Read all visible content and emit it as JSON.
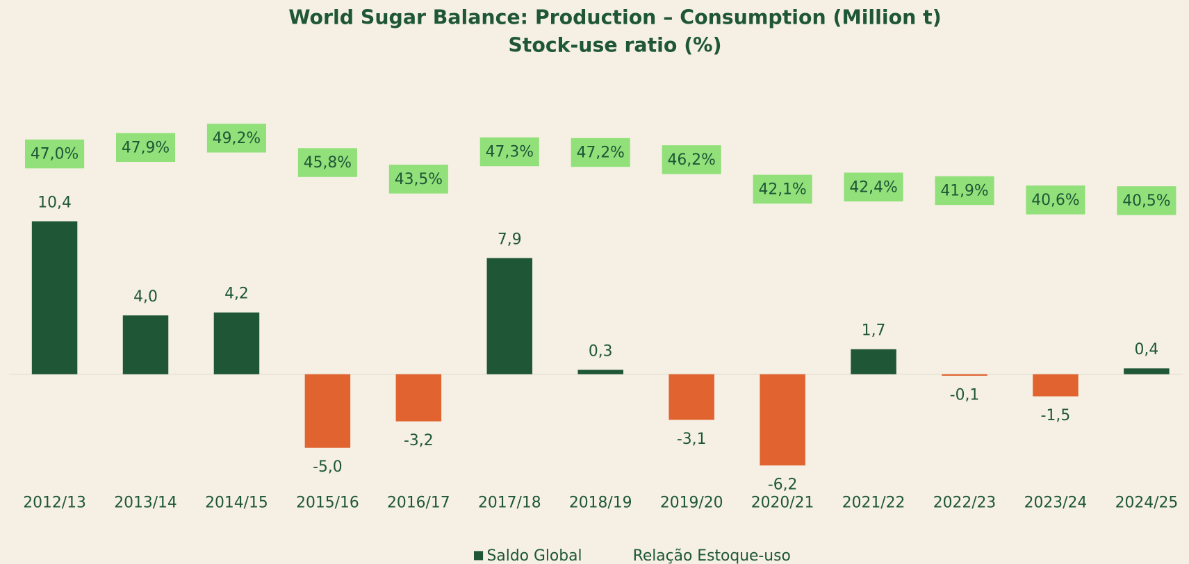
{
  "chart_data": {
    "type": "bar",
    "title": "World Sugar Balance: Production – Consumption (Million t)",
    "subtitle": "Stock-use ratio (%)",
    "categories": [
      "2012/13",
      "2013/14",
      "2014/15",
      "2015/16",
      "2016/17",
      "2017/18",
      "2018/19",
      "2019/20",
      "2020/21",
      "2021/22",
      "2022/23",
      "2023/24",
      "2024/25"
    ],
    "series": [
      {
        "name": "Saldo Global",
        "color": "#1e5636",
        "negative_color": "#e06330",
        "values": [
          10.4,
          4.0,
          4.2,
          -5.0,
          -3.2,
          7.9,
          0.3,
          -3.1,
          -6.2,
          1.7,
          -0.1,
          -1.5,
          0.4
        ],
        "value_labels": [
          "10,4",
          "4,0",
          "4,2",
          "-5,0",
          "-3,2",
          "7,9",
          "0,3",
          "-3,1",
          "-6,2",
          "1,7",
          "-0,1",
          "-1,5",
          "0,4"
        ]
      },
      {
        "name": "Relação Estoque-uso",
        "color": "#92e07a",
        "axis": "y2",
        "values": [
          47.0,
          47.9,
          49.2,
          45.8,
          43.5,
          47.3,
          47.2,
          46.2,
          42.1,
          42.4,
          41.9,
          40.6,
          40.5
        ],
        "value_labels": [
          "47,0%",
          "47,9%",
          "49,2%",
          "45,8%",
          "43,5%",
          "47,3%",
          "47,2%",
          "46,2%",
          "42,1%",
          "42,4%",
          "41,9%",
          "40,6%",
          "40,5%"
        ]
      }
    ],
    "ylim": [
      -8,
      14
    ],
    "y2lim": [
      0,
      45
    ],
    "legend": "bottom"
  }
}
